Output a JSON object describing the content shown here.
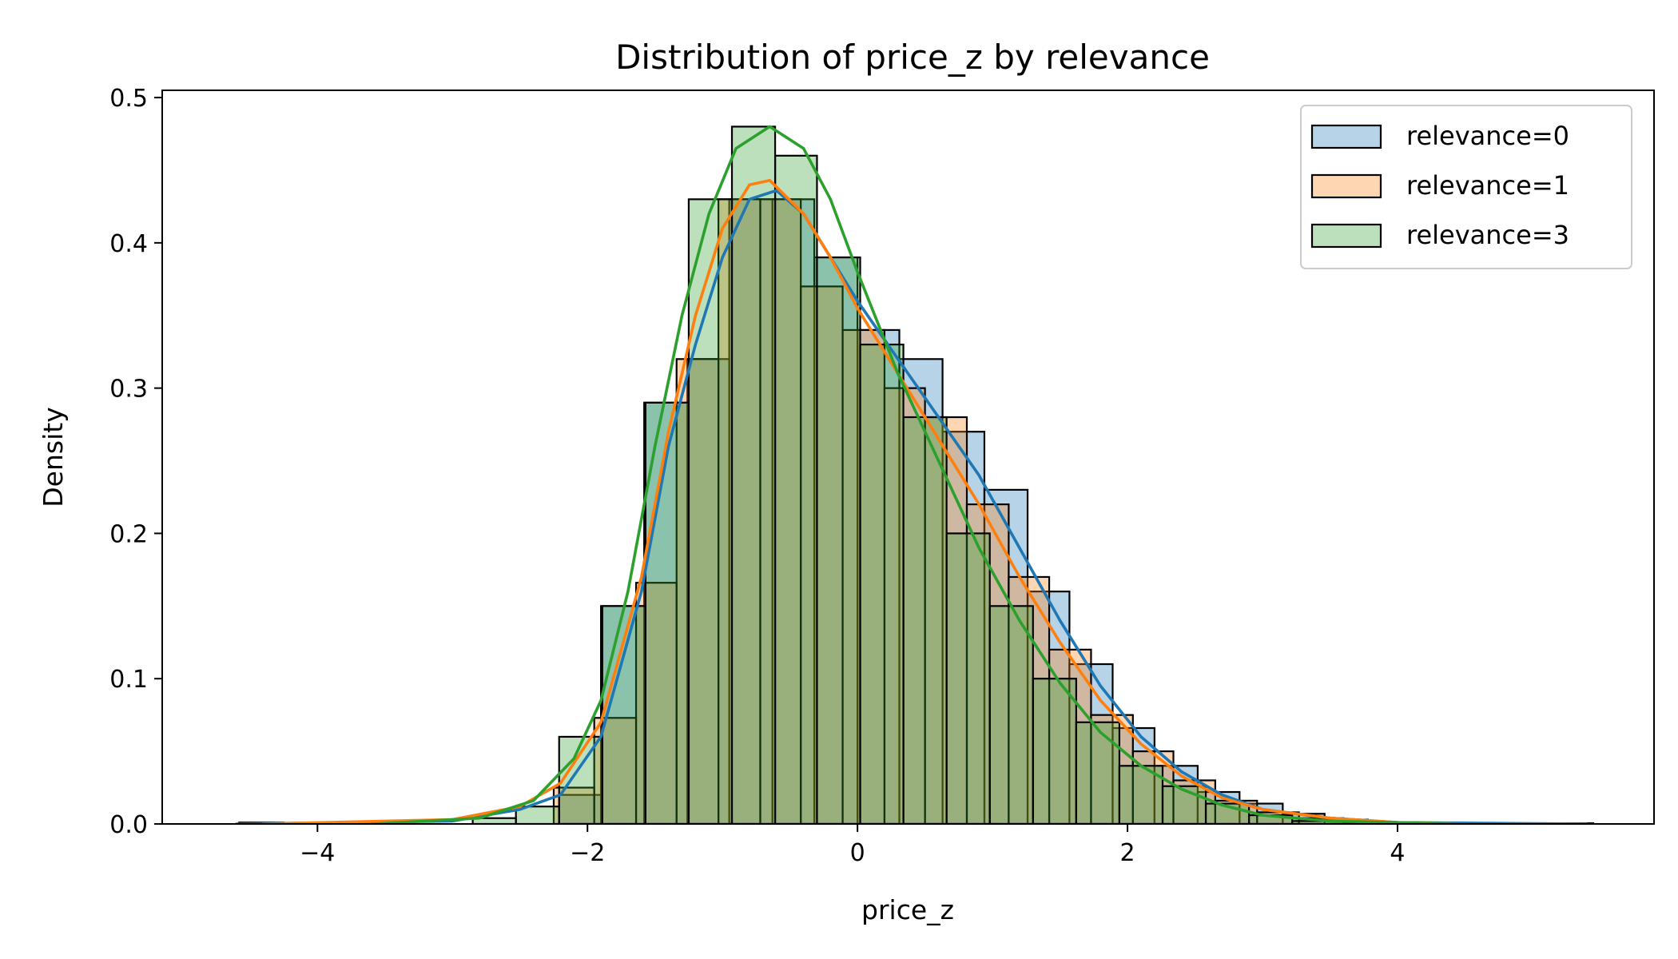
{
  "chart_data": {
    "type": "histogram",
    "title": "Distribution of price_z by relevance",
    "xlabel": "price_z",
    "ylabel": "Density",
    "xlim": [
      -5.15,
      5.9
    ],
    "ylim": [
      0,
      0.505
    ],
    "xticks": [
      -4,
      -2,
      0,
      2,
      4
    ],
    "xtick_labels": [
      "−4",
      "−2",
      "0",
      "2",
      "4"
    ],
    "yticks": [
      0.0,
      0.1,
      0.2,
      0.3,
      0.4,
      0.5
    ],
    "ytick_labels": [
      "0.0",
      "0.1",
      "0.2",
      "0.3",
      "0.4",
      "0.5"
    ],
    "grid": false,
    "legend_position": "top-right",
    "series": [
      {
        "name": "relevance=0",
        "color": "#1f77b4",
        "bins": [
          [
            -4.58,
            -4.25,
            0.001
          ],
          [
            -2.21,
            -1.9,
            0.02
          ],
          [
            -1.9,
            -1.58,
            0.15
          ],
          [
            -1.58,
            -1.26,
            0.29
          ],
          [
            -1.26,
            -0.95,
            0.32
          ],
          [
            -0.95,
            -0.63,
            0.43
          ],
          [
            -0.63,
            -0.32,
            0.43
          ],
          [
            -0.32,
            0.0,
            0.39
          ],
          [
            0.0,
            0.31,
            0.34
          ],
          [
            0.31,
            0.63,
            0.32
          ],
          [
            0.63,
            0.94,
            0.27
          ],
          [
            0.94,
            1.26,
            0.23
          ],
          [
            1.26,
            1.57,
            0.16
          ],
          [
            1.57,
            1.89,
            0.11
          ],
          [
            1.89,
            2.2,
            0.066
          ],
          [
            2.2,
            2.52,
            0.04
          ],
          [
            2.52,
            2.83,
            0.022
          ],
          [
            2.83,
            3.15,
            0.014
          ],
          [
            3.15,
            3.46,
            0.007
          ],
          [
            3.46,
            3.78,
            0.003
          ],
          [
            3.78,
            4.1,
            0.001
          ],
          [
            4.1,
            5.45,
            0.0005
          ]
        ],
        "kde": [
          [
            -4.6,
            0
          ],
          [
            -3.0,
            0.002
          ],
          [
            -2.5,
            0.01
          ],
          [
            -2.2,
            0.02
          ],
          [
            -1.9,
            0.06
          ],
          [
            -1.6,
            0.16
          ],
          [
            -1.4,
            0.26
          ],
          [
            -1.2,
            0.33
          ],
          [
            -1.0,
            0.39
          ],
          [
            -0.8,
            0.43
          ],
          [
            -0.6,
            0.436
          ],
          [
            -0.4,
            0.42
          ],
          [
            -0.2,
            0.39
          ],
          [
            0.0,
            0.36
          ],
          [
            0.3,
            0.32
          ],
          [
            0.6,
            0.28
          ],
          [
            0.9,
            0.24
          ],
          [
            1.2,
            0.19
          ],
          [
            1.5,
            0.14
          ],
          [
            1.8,
            0.095
          ],
          [
            2.1,
            0.06
          ],
          [
            2.4,
            0.036
          ],
          [
            2.7,
            0.02
          ],
          [
            3.0,
            0.01
          ],
          [
            3.5,
            0.004
          ],
          [
            4.0,
            0.001
          ],
          [
            5.4,
            0
          ]
        ]
      },
      {
        "name": "relevance=1",
        "color": "#ff7f0e",
        "bins": [
          [
            -4.4,
            -3.7,
            0.0005
          ],
          [
            -2.25,
            -1.95,
            0.025
          ],
          [
            -1.95,
            -1.64,
            0.073
          ],
          [
            -1.64,
            -1.34,
            0.166
          ],
          [
            -1.34,
            -1.03,
            0.32
          ],
          [
            -1.03,
            -0.72,
            0.43
          ],
          [
            -0.72,
            -0.42,
            0.43
          ],
          [
            -0.42,
            -0.11,
            0.37
          ],
          [
            -0.11,
            0.2,
            0.34
          ],
          [
            0.2,
            0.5,
            0.3
          ],
          [
            0.5,
            0.81,
            0.28
          ],
          [
            0.81,
            1.12,
            0.22
          ],
          [
            1.12,
            1.42,
            0.17
          ],
          [
            1.42,
            1.73,
            0.12
          ],
          [
            1.73,
            2.04,
            0.075
          ],
          [
            2.04,
            2.34,
            0.05
          ],
          [
            2.34,
            2.65,
            0.03
          ],
          [
            2.65,
            2.96,
            0.016
          ],
          [
            2.96,
            3.27,
            0.008
          ],
          [
            3.27,
            3.6,
            0.004
          ],
          [
            3.6,
            4.5,
            0.001
          ]
        ],
        "kde": [
          [
            -4.4,
            0
          ],
          [
            -3.0,
            0.003
          ],
          [
            -2.5,
            0.012
          ],
          [
            -2.2,
            0.028
          ],
          [
            -1.9,
            0.07
          ],
          [
            -1.6,
            0.17
          ],
          [
            -1.4,
            0.27
          ],
          [
            -1.2,
            0.35
          ],
          [
            -1.0,
            0.41
          ],
          [
            -0.8,
            0.44
          ],
          [
            -0.65,
            0.443
          ],
          [
            -0.4,
            0.42
          ],
          [
            -0.2,
            0.39
          ],
          [
            0.0,
            0.355
          ],
          [
            0.3,
            0.31
          ],
          [
            0.6,
            0.265
          ],
          [
            0.9,
            0.22
          ],
          [
            1.2,
            0.17
          ],
          [
            1.5,
            0.125
          ],
          [
            1.8,
            0.085
          ],
          [
            2.1,
            0.055
          ],
          [
            2.4,
            0.033
          ],
          [
            2.7,
            0.018
          ],
          [
            3.0,
            0.01
          ],
          [
            3.5,
            0.004
          ],
          [
            4.0,
            0.001
          ],
          [
            4.5,
            0
          ]
        ]
      },
      {
        "name": "relevance=3",
        "color": "#2ca02c",
        "bins": [
          [
            -2.85,
            -2.53,
            0.004
          ],
          [
            -2.53,
            -2.21,
            0.012
          ],
          [
            -2.21,
            -1.89,
            0.06
          ],
          [
            -1.89,
            -1.57,
            0.15
          ],
          [
            -1.57,
            -1.25,
            0.29
          ],
          [
            -1.25,
            -0.93,
            0.43
          ],
          [
            -0.93,
            -0.61,
            0.48
          ],
          [
            -0.61,
            -0.3,
            0.46
          ],
          [
            -0.3,
            0.02,
            0.39
          ],
          [
            0.02,
            0.34,
            0.33
          ],
          [
            0.34,
            0.66,
            0.28
          ],
          [
            0.66,
            0.98,
            0.2
          ],
          [
            0.98,
            1.3,
            0.15
          ],
          [
            1.3,
            1.62,
            0.1
          ],
          [
            1.62,
            1.94,
            0.07
          ],
          [
            1.94,
            2.26,
            0.04
          ],
          [
            2.26,
            2.58,
            0.026
          ],
          [
            2.58,
            2.9,
            0.014
          ],
          [
            2.9,
            3.22,
            0.006
          ],
          [
            3.22,
            3.8,
            0.002
          ]
        ],
        "kde": [
          [
            -3.6,
            0
          ],
          [
            -2.8,
            0.004
          ],
          [
            -2.4,
            0.016
          ],
          [
            -2.1,
            0.045
          ],
          [
            -1.9,
            0.085
          ],
          [
            -1.7,
            0.16
          ],
          [
            -1.5,
            0.26
          ],
          [
            -1.3,
            0.35
          ],
          [
            -1.1,
            0.42
          ],
          [
            -0.9,
            0.465
          ],
          [
            -0.65,
            0.48
          ],
          [
            -0.4,
            0.465
          ],
          [
            -0.2,
            0.43
          ],
          [
            0.0,
            0.38
          ],
          [
            0.3,
            0.31
          ],
          [
            0.6,
            0.25
          ],
          [
            0.9,
            0.19
          ],
          [
            1.2,
            0.14
          ],
          [
            1.5,
            0.097
          ],
          [
            1.8,
            0.063
          ],
          [
            2.1,
            0.04
          ],
          [
            2.4,
            0.024
          ],
          [
            2.7,
            0.013
          ],
          [
            3.0,
            0.006
          ],
          [
            3.5,
            0.002
          ],
          [
            4.5,
            0
          ]
        ]
      }
    ]
  }
}
